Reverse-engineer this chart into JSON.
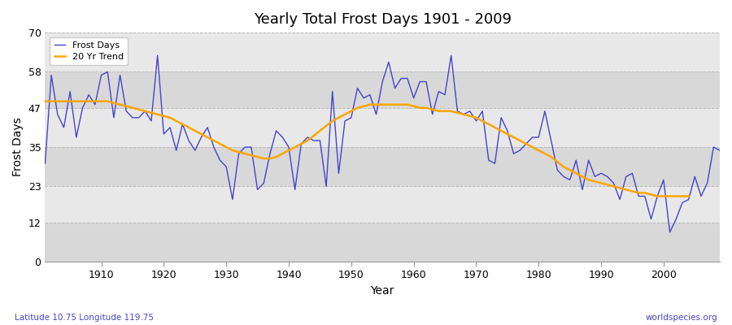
{
  "title": "Yearly Total Frost Days 1901 - 2009",
  "xlabel": "Year",
  "ylabel": "Frost Days",
  "subtitle": "Latitude 10.75 Longitude 119.75",
  "watermark": "worldspecies.org",
  "ylim": [
    0,
    70
  ],
  "yticks": [
    0,
    12,
    23,
    35,
    47,
    58,
    70
  ],
  "line_color": "#4444cc",
  "trend_color": "#FFA500",
  "fig_bg_color": "#ffffff",
  "plot_bg_color": "#e8e8e8",
  "band_color_1": "#d8d8d8",
  "band_color_2": "#e8e8e8",
  "frost_days": {
    "1901": 30,
    "1902": 57,
    "1903": 45,
    "1904": 41,
    "1905": 52,
    "1906": 38,
    "1907": 47,
    "1908": 51,
    "1909": 48,
    "1910": 57,
    "1911": 58,
    "1912": 44,
    "1913": 57,
    "1914": 46,
    "1915": 44,
    "1916": 44,
    "1917": 46,
    "1918": 43,
    "1919": 63,
    "1920": 39,
    "1921": 41,
    "1922": 34,
    "1923": 42,
    "1924": 37,
    "1925": 34,
    "1926": 38,
    "1927": 41,
    "1928": 35,
    "1929": 31,
    "1930": 29,
    "1931": 19,
    "1932": 33,
    "1933": 35,
    "1934": 35,
    "1935": 22,
    "1936": 24,
    "1937": 33,
    "1938": 40,
    "1939": 38,
    "1940": 35,
    "1941": 22,
    "1942": 36,
    "1943": 38,
    "1944": 37,
    "1945": 37,
    "1946": 23,
    "1947": 52,
    "1948": 27,
    "1949": 43,
    "1950": 44,
    "1951": 53,
    "1952": 50,
    "1953": 51,
    "1954": 45,
    "1955": 55,
    "1956": 61,
    "1957": 53,
    "1958": 56,
    "1959": 56,
    "1960": 50,
    "1961": 55,
    "1962": 55,
    "1963": 45,
    "1964": 52,
    "1965": 51,
    "1966": 63,
    "1967": 46,
    "1968": 45,
    "1969": 46,
    "1970": 43,
    "1971": 46,
    "1972": 31,
    "1973": 30,
    "1974": 44,
    "1975": 40,
    "1976": 33,
    "1977": 34,
    "1978": 36,
    "1979": 38,
    "1980": 38,
    "1981": 46,
    "1982": 37,
    "1983": 28,
    "1984": 26,
    "1985": 25,
    "1986": 31,
    "1987": 22,
    "1988": 31,
    "1989": 26,
    "1990": 27,
    "1991": 26,
    "1992": 24,
    "1993": 19,
    "1994": 26,
    "1995": 27,
    "1996": 20,
    "1997": 20,
    "1998": 13,
    "1999": 20,
    "2000": 25,
    "2001": 9,
    "2002": 13,
    "2003": 18,
    "2004": 19,
    "2005": 26,
    "2006": 20,
    "2007": 24,
    "2008": 35,
    "2009": 34
  },
  "trend_days": {
    "1901": 49,
    "1902": 49,
    "1903": 49,
    "1904": 49,
    "1905": 49,
    "1906": 49,
    "1907": 49,
    "1908": 49,
    "1909": 49,
    "1910": 49,
    "1911": 49,
    "1912": 48.5,
    "1913": 48,
    "1914": 47.5,
    "1915": 47,
    "1916": 46.5,
    "1917": 46,
    "1918": 45.5,
    "1919": 45,
    "1920": 44.5,
    "1921": 44,
    "1922": 43,
    "1923": 42,
    "1924": 41,
    "1925": 40,
    "1926": 39,
    "1927": 38,
    "1928": 37,
    "1929": 36,
    "1930": 35,
    "1931": 34,
    "1932": 33.5,
    "1933": 33,
    "1934": 32.5,
    "1935": 32,
    "1936": 31.5,
    "1937": 31.5,
    "1938": 32,
    "1939": 33,
    "1940": 34,
    "1941": 35,
    "1942": 36,
    "1943": 37,
    "1944": 38.5,
    "1945": 40,
    "1946": 41.5,
    "1947": 43,
    "1948": 44,
    "1949": 45,
    "1950": 46,
    "1951": 47,
    "1952": 47.5,
    "1953": 48,
    "1954": 48,
    "1955": 48,
    "1956": 48,
    "1957": 48,
    "1958": 48,
    "1959": 48,
    "1960": 47.5,
    "1961": 47,
    "1962": 47,
    "1963": 46.5,
    "1964": 46,
    "1965": 46,
    "1966": 46,
    "1967": 45.5,
    "1968": 45,
    "1969": 44.5,
    "1970": 44,
    "1971": 43,
    "1972": 42,
    "1973": 41,
    "1974": 40,
    "1975": 39,
    "1976": 38,
    "1977": 37,
    "1978": 36,
    "1979": 35,
    "1980": 34,
    "1981": 33,
    "1982": 32,
    "1983": 30.5,
    "1984": 29,
    "1985": 28,
    "1986": 27,
    "1987": 26,
    "1988": 25,
    "1989": 24.5,
    "1990": 24,
    "1991": 23.5,
    "1992": 23,
    "1993": 22.5,
    "1994": 22,
    "1995": 21.5,
    "1996": 21,
    "1997": 21,
    "1998": 20.5,
    "1999": 20,
    "2000": 20,
    "2001": 20,
    "2002": 20,
    "2003": 20,
    "2004": 20
  }
}
